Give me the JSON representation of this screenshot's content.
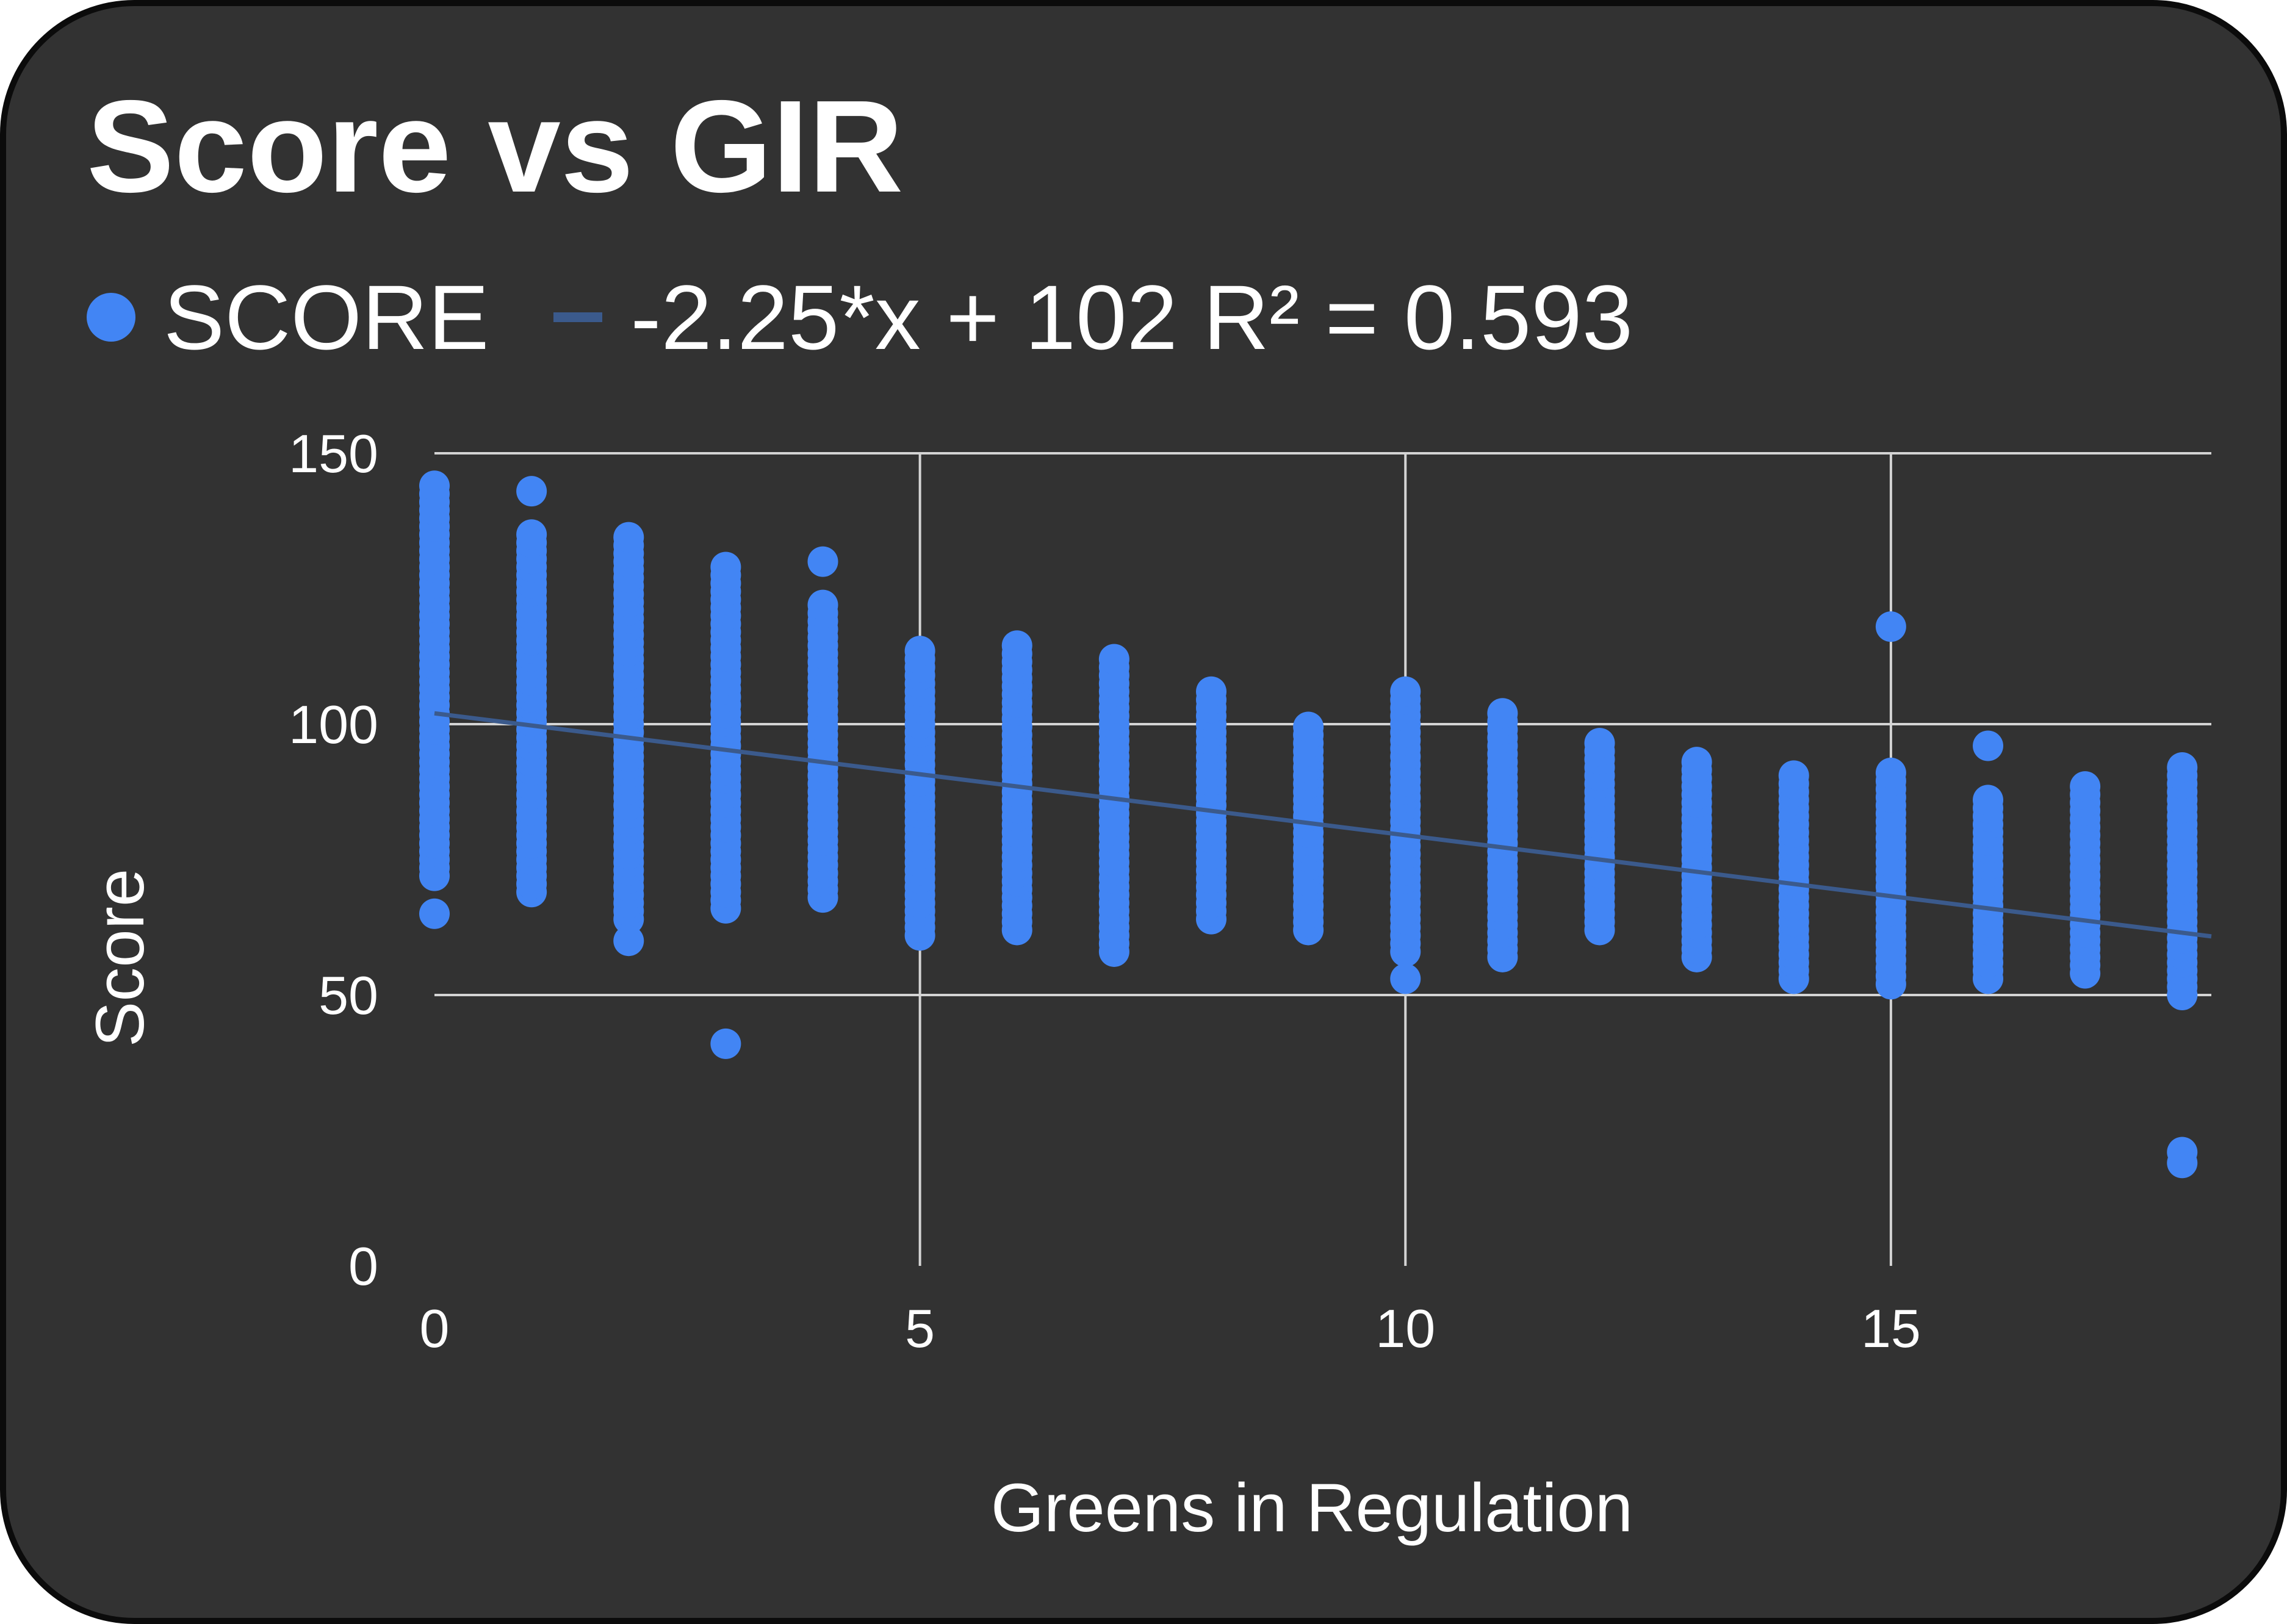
{
  "colors": {
    "background": "#323232",
    "series": "#4285f4",
    "trendline": "#3b5a8c",
    "grid": "#d4d4d4",
    "text": "#ffffff"
  },
  "chart_data": {
    "type": "scatter",
    "title": "Score vs GIR",
    "xlabel": "Greens in Regulation",
    "ylabel": "Score",
    "xlim": [
      0,
      18.3
    ],
    "ylim": [
      0,
      150
    ],
    "xticks": [
      0,
      5,
      10,
      15
    ],
    "yticks": [
      0,
      50,
      100,
      150
    ],
    "grid": true,
    "legend": "top-left",
    "series": [
      {
        "name": "SCORE",
        "columns": [
          {
            "x": 0,
            "min": 72,
            "max": 145,
            "outliers": [
              65
            ]
          },
          {
            "x": 1,
            "min": 69,
            "max": 136,
            "outliers": [
              143
            ]
          },
          {
            "x": 2,
            "min": 64,
            "max": 135,
            "outliers": [
              60
            ]
          },
          {
            "x": 3,
            "min": 66,
            "max": 130,
            "outliers": [
              41
            ]
          },
          {
            "x": 4,
            "min": 68,
            "max": 122,
            "outliers": [
              130
            ]
          },
          {
            "x": 5,
            "min": 61,
            "max": 114,
            "outliers": []
          },
          {
            "x": 6,
            "min": 62,
            "max": 115,
            "outliers": []
          },
          {
            "x": 7,
            "min": 58,
            "max": 113,
            "outliers": []
          },
          {
            "x": 8,
            "min": 64,
            "max": 107,
            "outliers": []
          },
          {
            "x": 9,
            "min": 62,
            "max": 100,
            "outliers": []
          },
          {
            "x": 10,
            "min": 58,
            "max": 106,
            "outliers": [
              53
            ]
          },
          {
            "x": 11,
            "min": 57,
            "max": 103,
            "outliers": []
          },
          {
            "x": 12,
            "min": 62,
            "max": 97,
            "outliers": []
          },
          {
            "x": 13,
            "min": 57,
            "max": 94,
            "outliers": []
          },
          {
            "x": 14,
            "min": 53,
            "max": 91,
            "outliers": []
          },
          {
            "x": 15,
            "min": 52,
            "max": 92,
            "outliers": [
              118
            ]
          },
          {
            "x": 16,
            "min": 53,
            "max": 86,
            "outliers": [
              96
            ]
          },
          {
            "x": 17,
            "min": 54,
            "max": 89,
            "outliers": []
          },
          {
            "x": 18,
            "min": 50,
            "max": 93,
            "outliers": [
              21,
              19
            ]
          }
        ]
      }
    ],
    "trendline": {
      "name": "-2.25*x + 102 R² = 0.593",
      "slope": -2.25,
      "intercept": 102
    }
  }
}
